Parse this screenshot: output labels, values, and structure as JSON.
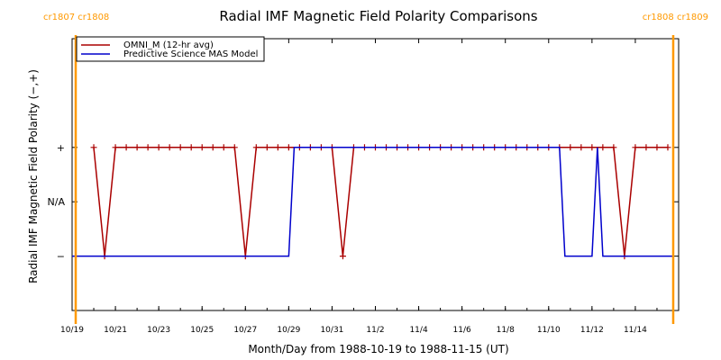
{
  "chart_data": {
    "type": "line",
    "title": "Radial IMF Magnetic Field Polarity Comparisons",
    "xlabel": "Month/Day from 1988-10-19 to 1988-11-15 (UT)",
    "ylabel": "Radial IMF Magnetic Field Polarity (−,+)",
    "xlim": [
      "1988-10-19T00:00",
      "1988-11-16T00:00"
    ],
    "x_tick_labels": [
      "10/19",
      "10/21",
      "10/23",
      "10/25",
      "10/27",
      "10/29",
      "10/31",
      "11/2",
      "11/4",
      "11/6",
      "11/8",
      "11/10",
      "11/12",
      "11/14"
    ],
    "x_ticks": [
      "1988-10-19",
      "1988-10-21",
      "1988-10-23",
      "1988-10-25",
      "1988-10-27",
      "1988-10-29",
      "1988-10-31",
      "1988-11-02",
      "1988-11-04",
      "1988-11-06",
      "1988-11-08",
      "1988-11-10",
      "1988-11-12",
      "1988-11-14"
    ],
    "y_categories": [
      "−",
      "N/A",
      "+"
    ],
    "y_values": [
      -1,
      0,
      1
    ],
    "ylim": [
      -2,
      3
    ],
    "grid": false,
    "legend_position": "top-left",
    "markers": [
      {
        "label": "cr1807 cr1808",
        "x": "1988-10-19T04:00",
        "color": "#ff9900"
      },
      {
        "label": "cr1808 cr1809",
        "x": "1988-11-15T18:00",
        "color": "#ff9900"
      }
    ],
    "series": [
      {
        "name": "OMNI_M (12-hr avg)",
        "color": "#aa0000",
        "marker": "+",
        "points": [
          [
            "1988-10-20T00:00",
            1
          ],
          [
            "1988-10-20T12:00",
            -1
          ],
          [
            "1988-10-21T00:00",
            1
          ],
          [
            "1988-10-21T12:00",
            1
          ],
          [
            "1988-10-22T00:00",
            1
          ],
          [
            "1988-10-22T12:00",
            1
          ],
          [
            "1988-10-23T00:00",
            1
          ],
          [
            "1988-10-23T12:00",
            1
          ],
          [
            "1988-10-24T00:00",
            1
          ],
          [
            "1988-10-24T12:00",
            1
          ],
          [
            "1988-10-25T00:00",
            1
          ],
          [
            "1988-10-25T12:00",
            1
          ],
          [
            "1988-10-26T00:00",
            1
          ],
          [
            "1988-10-26T12:00",
            1
          ],
          [
            "1988-10-27T00:00",
            -1
          ],
          [
            "1988-10-27T12:00",
            1
          ],
          [
            "1988-10-28T00:00",
            1
          ],
          [
            "1988-10-28T12:00",
            1
          ],
          [
            "1988-10-29T00:00",
            1
          ],
          [
            "1988-10-29T12:00",
            1
          ],
          [
            "1988-10-30T00:00",
            1
          ],
          [
            "1988-10-30T12:00",
            1
          ],
          [
            "1988-10-31T00:00",
            1
          ],
          [
            "1988-10-31T12:00",
            -1
          ],
          [
            "1988-11-01T00:00",
            1
          ],
          [
            "1988-11-01T12:00",
            1
          ],
          [
            "1988-11-02T00:00",
            1
          ],
          [
            "1988-11-02T12:00",
            1
          ],
          [
            "1988-11-03T00:00",
            1
          ],
          [
            "1988-11-03T12:00",
            1
          ],
          [
            "1988-11-04T00:00",
            1
          ],
          [
            "1988-11-04T12:00",
            1
          ],
          [
            "1988-11-05T00:00",
            1
          ],
          [
            "1988-11-05T12:00",
            1
          ],
          [
            "1988-11-06T00:00",
            1
          ],
          [
            "1988-11-06T12:00",
            1
          ],
          [
            "1988-11-07T00:00",
            1
          ],
          [
            "1988-11-07T12:00",
            1
          ],
          [
            "1988-11-08T00:00",
            1
          ],
          [
            "1988-11-08T12:00",
            1
          ],
          [
            "1988-11-09T00:00",
            1
          ],
          [
            "1988-11-09T12:00",
            1
          ],
          [
            "1988-11-10T00:00",
            1
          ],
          [
            "1988-11-10T12:00",
            1
          ],
          [
            "1988-11-11T00:00",
            1
          ],
          [
            "1988-11-11T12:00",
            1
          ],
          [
            "1988-11-12T00:00",
            1
          ],
          [
            "1988-11-12T12:00",
            1
          ],
          [
            "1988-11-13T00:00",
            1
          ],
          [
            "1988-11-13T12:00",
            -1
          ],
          [
            "1988-11-14T00:00",
            1
          ],
          [
            "1988-11-14T12:00",
            1
          ],
          [
            "1988-11-15T00:00",
            1
          ],
          [
            "1988-11-15T12:00",
            1
          ]
        ]
      },
      {
        "name": "Predictive Science MAS Model",
        "color": "#0000cc",
        "marker": "none",
        "points": [
          [
            "1988-10-19T00:00",
            -1
          ],
          [
            "1988-10-29T00:00",
            -1
          ],
          [
            "1988-10-29T06:00",
            1
          ],
          [
            "1988-11-10T12:00",
            1
          ],
          [
            "1988-11-10T18:00",
            -1
          ],
          [
            "1988-11-12T00:00",
            -1
          ],
          [
            "1988-11-12T06:00",
            1
          ],
          [
            "1988-11-12T12:00",
            -1
          ],
          [
            "1988-11-15T18:00",
            -1
          ]
        ]
      }
    ]
  }
}
